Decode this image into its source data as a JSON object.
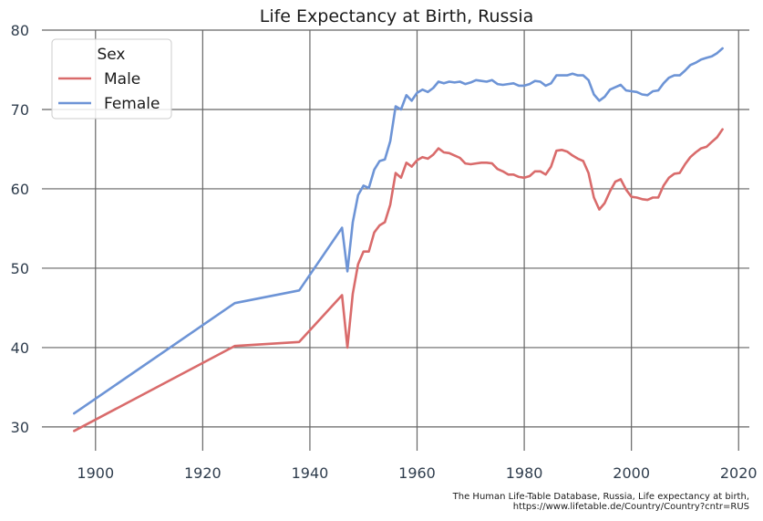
{
  "chart_data": {
    "type": "line",
    "title": "Life Expectancy at Birth, Russia",
    "xlabel": "",
    "ylabel": "",
    "xlim": [
      1890,
      2022
    ],
    "ylim": [
      27,
      80
    ],
    "xticks": [
      1900,
      1920,
      1940,
      1960,
      1980,
      2000,
      2020
    ],
    "yticks": [
      30,
      40,
      50,
      60,
      70,
      80
    ],
    "grid": true,
    "legend": {
      "title": "Sex",
      "placement": "top-left"
    },
    "series": [
      {
        "name": "Male",
        "color": "#d96b6b",
        "points": [
          [
            1896,
            29.5
          ],
          [
            1926,
            40.2
          ],
          [
            1938,
            40.7
          ],
          [
            1946,
            46.6
          ],
          [
            1947,
            40.0
          ],
          [
            1948,
            46.8
          ],
          [
            1949,
            50.5
          ],
          [
            1950,
            52.1
          ],
          [
            1951,
            52.1
          ],
          [
            1952,
            54.5
          ],
          [
            1953,
            55.4
          ],
          [
            1954,
            55.8
          ],
          [
            1955,
            58.0
          ],
          [
            1956,
            62.0
          ],
          [
            1957,
            61.4
          ],
          [
            1958,
            63.3
          ],
          [
            1959,
            62.8
          ],
          [
            1960,
            63.6
          ],
          [
            1961,
            64.0
          ],
          [
            1962,
            63.8
          ],
          [
            1963,
            64.3
          ],
          [
            1964,
            65.1
          ],
          [
            1965,
            64.6
          ],
          [
            1966,
            64.5
          ],
          [
            1967,
            64.2
          ],
          [
            1968,
            63.9
          ],
          [
            1969,
            63.2
          ],
          [
            1970,
            63.1
          ],
          [
            1971,
            63.2
          ],
          [
            1972,
            63.3
          ],
          [
            1973,
            63.3
          ],
          [
            1974,
            63.2
          ],
          [
            1975,
            62.5
          ],
          [
            1976,
            62.2
          ],
          [
            1977,
            61.8
          ],
          [
            1978,
            61.8
          ],
          [
            1979,
            61.5
          ],
          [
            1980,
            61.4
          ],
          [
            1981,
            61.6
          ],
          [
            1982,
            62.2
          ],
          [
            1983,
            62.2
          ],
          [
            1984,
            61.8
          ],
          [
            1985,
            62.8
          ],
          [
            1986,
            64.8
          ],
          [
            1987,
            64.9
          ],
          [
            1988,
            64.7
          ],
          [
            1989,
            64.2
          ],
          [
            1990,
            63.8
          ],
          [
            1991,
            63.5
          ],
          [
            1992,
            62.0
          ],
          [
            1993,
            58.9
          ],
          [
            1994,
            57.4
          ],
          [
            1995,
            58.2
          ],
          [
            1996,
            59.7
          ],
          [
            1997,
            60.9
          ],
          [
            1998,
            61.2
          ],
          [
            1999,
            59.9
          ],
          [
            2000,
            59.0
          ],
          [
            2001,
            58.9
          ],
          [
            2002,
            58.7
          ],
          [
            2003,
            58.6
          ],
          [
            2004,
            58.9
          ],
          [
            2005,
            58.9
          ],
          [
            2006,
            60.4
          ],
          [
            2007,
            61.4
          ],
          [
            2008,
            61.9
          ],
          [
            2009,
            62.0
          ],
          [
            2010,
            63.1
          ],
          [
            2011,
            64.0
          ],
          [
            2012,
            64.6
          ],
          [
            2013,
            65.1
          ],
          [
            2014,
            65.3
          ],
          [
            2015,
            65.9
          ],
          [
            2016,
            66.5
          ],
          [
            2017,
            67.5
          ]
        ]
      },
      {
        "name": "Female",
        "color": "#6d94d6",
        "points": [
          [
            1896,
            31.7
          ],
          [
            1926,
            45.6
          ],
          [
            1938,
            47.2
          ],
          [
            1946,
            55.1
          ],
          [
            1947,
            49.6
          ],
          [
            1948,
            55.8
          ],
          [
            1949,
            59.2
          ],
          [
            1950,
            60.4
          ],
          [
            1951,
            60.1
          ],
          [
            1952,
            62.4
          ],
          [
            1953,
            63.5
          ],
          [
            1954,
            63.7
          ],
          [
            1955,
            66.0
          ],
          [
            1956,
            70.4
          ],
          [
            1957,
            70.0
          ],
          [
            1958,
            71.8
          ],
          [
            1959,
            71.1
          ],
          [
            1960,
            72.1
          ],
          [
            1961,
            72.5
          ],
          [
            1962,
            72.2
          ],
          [
            1963,
            72.7
          ],
          [
            1964,
            73.5
          ],
          [
            1965,
            73.3
          ],
          [
            1966,
            73.5
          ],
          [
            1967,
            73.4
          ],
          [
            1968,
            73.5
          ],
          [
            1969,
            73.2
          ],
          [
            1970,
            73.4
          ],
          [
            1971,
            73.7
          ],
          [
            1972,
            73.6
          ],
          [
            1973,
            73.5
          ],
          [
            1974,
            73.7
          ],
          [
            1975,
            73.2
          ],
          [
            1976,
            73.1
          ],
          [
            1977,
            73.2
          ],
          [
            1978,
            73.3
          ],
          [
            1979,
            73.0
          ],
          [
            1980,
            73.0
          ],
          [
            1981,
            73.2
          ],
          [
            1982,
            73.6
          ],
          [
            1983,
            73.5
          ],
          [
            1984,
            73.0
          ],
          [
            1985,
            73.3
          ],
          [
            1986,
            74.3
          ],
          [
            1987,
            74.3
          ],
          [
            1988,
            74.3
          ],
          [
            1989,
            74.5
          ],
          [
            1990,
            74.3
          ],
          [
            1991,
            74.3
          ],
          [
            1992,
            73.7
          ],
          [
            1993,
            71.9
          ],
          [
            1994,
            71.1
          ],
          [
            1995,
            71.6
          ],
          [
            1996,
            72.5
          ],
          [
            1997,
            72.8
          ],
          [
            1998,
            73.1
          ],
          [
            1999,
            72.4
          ],
          [
            2000,
            72.3
          ],
          [
            2001,
            72.2
          ],
          [
            2002,
            71.9
          ],
          [
            2003,
            71.8
          ],
          [
            2004,
            72.3
          ],
          [
            2005,
            72.4
          ],
          [
            2006,
            73.3
          ],
          [
            2007,
            74.0
          ],
          [
            2008,
            74.3
          ],
          [
            2009,
            74.3
          ],
          [
            2010,
            74.9
          ],
          [
            2011,
            75.6
          ],
          [
            2012,
            75.9
          ],
          [
            2013,
            76.3
          ],
          [
            2014,
            76.5
          ],
          [
            2015,
            76.7
          ],
          [
            2016,
            77.1
          ],
          [
            2017,
            77.7
          ]
        ]
      }
    ]
  },
  "source_note": {
    "line1": "The Human Life-Table Database, Russia, Life expectancy at birth,",
    "line2": "https://www.lifetable.de/Country/Country?cntr=RUS"
  }
}
